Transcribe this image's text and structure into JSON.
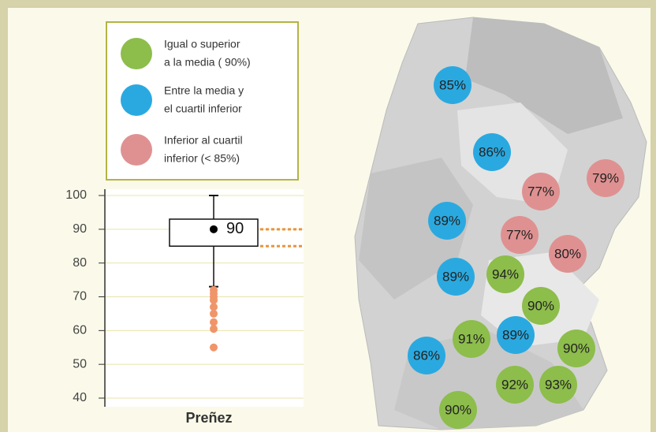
{
  "legend": [
    {
      "lines": [
        "Igual o superior",
        "a la media ( 90%)"
      ],
      "color": "#8dbd4b"
    },
    {
      "lines": [
        "Entre la media y",
        "el cuartil inferior"
      ],
      "color": "#2aa9e0"
    },
    {
      "lines": [
        "Inferior al cuartil",
        "inferior (< 85%)"
      ],
      "color": "#df9191"
    }
  ],
  "chart_data": {
    "type": "box",
    "categories": [
      "Preñez"
    ],
    "ylim": [
      40,
      100
    ],
    "yticks": [
      40,
      50,
      60,
      70,
      80,
      90,
      100
    ],
    "grid": true,
    "whisker_low": 73,
    "q1": 85,
    "q3": 93,
    "whisker_high": 100,
    "mean": 90,
    "mean_label": "90",
    "outliers": [
      72,
      71,
      70,
      69,
      67,
      65,
      62.5,
      60.5,
      55
    ],
    "outlier_color": "#f0956a"
  },
  "map_markers": {
    "values": [
      85,
      86,
      77,
      79,
      89,
      77,
      80,
      89,
      94,
      90,
      91,
      89,
      90,
      86,
      92,
      93,
      90
    ],
    "value_labels": [
      "85%",
      "86%",
      "77%",
      "79%",
      "89%",
      "77%",
      "80%",
      "89%",
      "94%",
      "90%",
      "91%",
      "89%",
      "90%",
      "86%",
      "92%",
      "93%",
      "90%"
    ],
    "colors": [
      "#2aa9e0",
      "#2aa9e0",
      "#df9191",
      "#df9191",
      "#2aa9e0",
      "#df9191",
      "#df9191",
      "#2aa9e0",
      "#8dbd4b",
      "#8dbd4b",
      "#8dbd4b",
      "#2aa9e0",
      "#8dbd4b",
      "#2aa9e0",
      "#8dbd4b",
      "#8dbd4b",
      "#8dbd4b"
    ]
  }
}
